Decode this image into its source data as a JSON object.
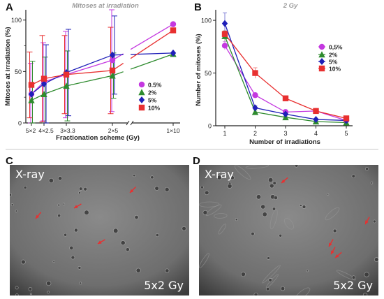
{
  "panels": {
    "A": "A",
    "B": "B",
    "C": "C",
    "D": "D"
  },
  "colors": {
    "purple": "#c438e0",
    "green": "#2e8b2e",
    "blue": "#1f1fb8",
    "red": "#e83030",
    "darkred": "#b51e2a",
    "micro_bg": "#7d7d7d"
  },
  "chart_data": [
    {
      "type": "line",
      "title": "Mitoses at irradiation",
      "xlabel": "Fractionation scheme (Gy)",
      "ylabel": "Mitoses at irradiation (%)",
      "ylim": [
        0,
        110
      ],
      "yticks": [
        0,
        50,
        100
      ],
      "categories": [
        "5×2",
        "4×2.5",
        "3×3.3",
        "2×5",
        "1×10"
      ],
      "x": [
        5,
        4,
        3,
        2,
        1
      ],
      "x_axis_broken": true,
      "series": [
        {
          "name": "0.5%",
          "marker": "circle",
          "color": "#c438e0",
          "values": [
            28,
            40,
            47,
            61,
            96
          ],
          "err": [
            30,
            38,
            42,
            50,
            0
          ]
        },
        {
          "name": "2%",
          "marker": "triangle",
          "color": "#2e8b2e",
          "values": [
            22,
            28,
            36,
            46,
            67
          ],
          "err": [
            38,
            36,
            34,
            22,
            0
          ]
        },
        {
          "name": "5%",
          "marker": "diamond",
          "color": "#1f1fb8",
          "values": [
            28,
            38,
            49,
            66,
            68
          ],
          "err": [
            0,
            38,
            42,
            38,
            0
          ]
        },
        {
          "name": "10%",
          "marker": "square",
          "color": "#e83030",
          "values": [
            37,
            43,
            47,
            51,
            90
          ],
          "err": [
            32,
            42,
            38,
            42,
            0
          ]
        }
      ],
      "legend_position": "right"
    },
    {
      "type": "line",
      "title": "2 Gy",
      "xlabel": "Number of irradiations",
      "ylabel": "Number of mitoses (%)",
      "ylim": [
        0,
        110
      ],
      "yticks": [
        0,
        50,
        100
      ],
      "x": [
        1,
        2,
        3,
        4,
        5
      ],
      "series": [
        {
          "name": "0,5%",
          "marker": "circle",
          "color": "#c438e0",
          "values": [
            76,
            29,
            13,
            14,
            5
          ],
          "err": [
            4,
            2,
            1,
            1,
            1
          ]
        },
        {
          "name": "2%",
          "marker": "triangle",
          "color": "#2e8b2e",
          "values": [
            85,
            13,
            8,
            4,
            3
          ],
          "err": [
            5,
            2,
            1,
            1,
            1
          ]
        },
        {
          "name": "5%",
          "marker": "diamond",
          "color": "#1f1fb8",
          "values": [
            97,
            17,
            11,
            6,
            5
          ],
          "err": [
            10,
            2,
            1,
            1,
            1
          ]
        },
        {
          "name": "10%",
          "marker": "square",
          "color": "#e83030",
          "values": [
            87,
            50,
            26,
            14,
            7
          ],
          "err": [
            3,
            5,
            1,
            1,
            1
          ]
        }
      ],
      "legend_position": "right"
    }
  ],
  "micrographs": [
    {
      "id": "C",
      "label_top": "X-ray",
      "label_bottom": "5x2 Gy"
    },
    {
      "id": "D",
      "label_top": "X-ray",
      "label_bottom": "5x2 Gy"
    }
  ]
}
